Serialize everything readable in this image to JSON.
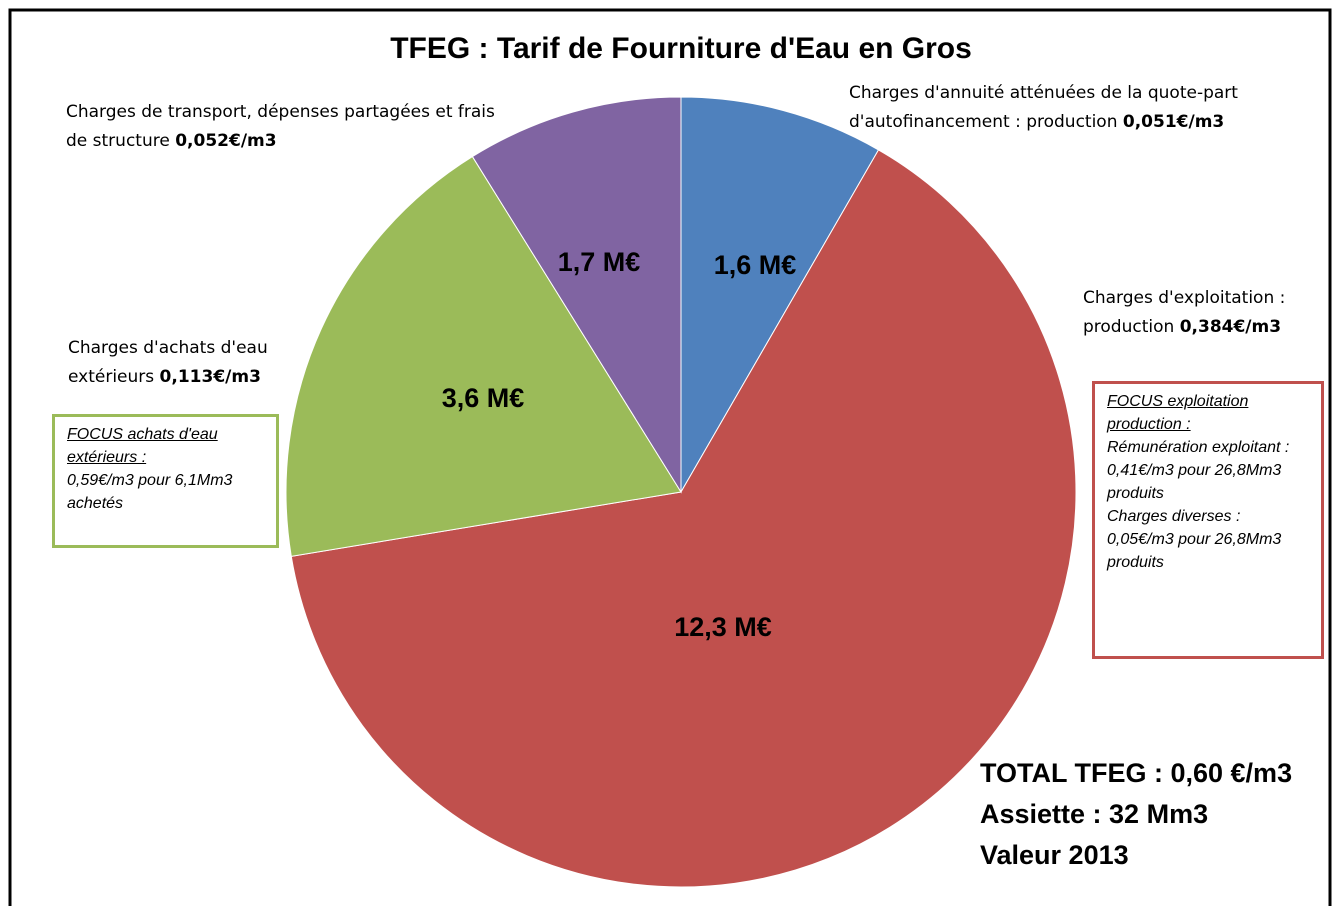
{
  "chart_data": {
    "type": "pie",
    "title": "TFEG : Tarif de Fourniture d'Eau en Gros",
    "categories": [
      "Charges d'annuité atténuées de la quote-part d'autofinancement : production",
      "Charges d'exploitation : production",
      "Charges d'achats d'eau extérieurs",
      "Charges de transport, dépenses partagées et frais de structure"
    ],
    "rates": [
      "0,051€/m3",
      "0,384€/m3",
      "0,113€/m3",
      "0,052€/m3"
    ],
    "values": [
      1.6,
      12.3,
      3.6,
      1.7
    ],
    "value_labels": [
      "1,6 M€",
      "12,3 M€",
      "3,6 M€",
      "1,7 M€"
    ],
    "colors": [
      "#4f81bd",
      "#c0504d",
      "#9bbb59",
      "#8064a2"
    ],
    "annotations": {
      "focus_achats": {
        "title": "FOCUS achats d'eau extérieurs :",
        "lines": [
          "0,59€/m3 pour 6,1Mm3 achetés"
        ]
      },
      "focus_exploitation": {
        "title": "FOCUS exploitation production :",
        "lines": [
          "Rémunération exploitant : 0,41€/m3 pour 26,8Mm3 produits",
          "Charges diverses : 0,05€/m3 pour 26,8Mm3 produits"
        ]
      },
      "summary": [
        "TOTAL TFEG : 0,60 €/m3",
        "Assiette : 32 Mm3",
        "Valeur 2013"
      ]
    }
  }
}
